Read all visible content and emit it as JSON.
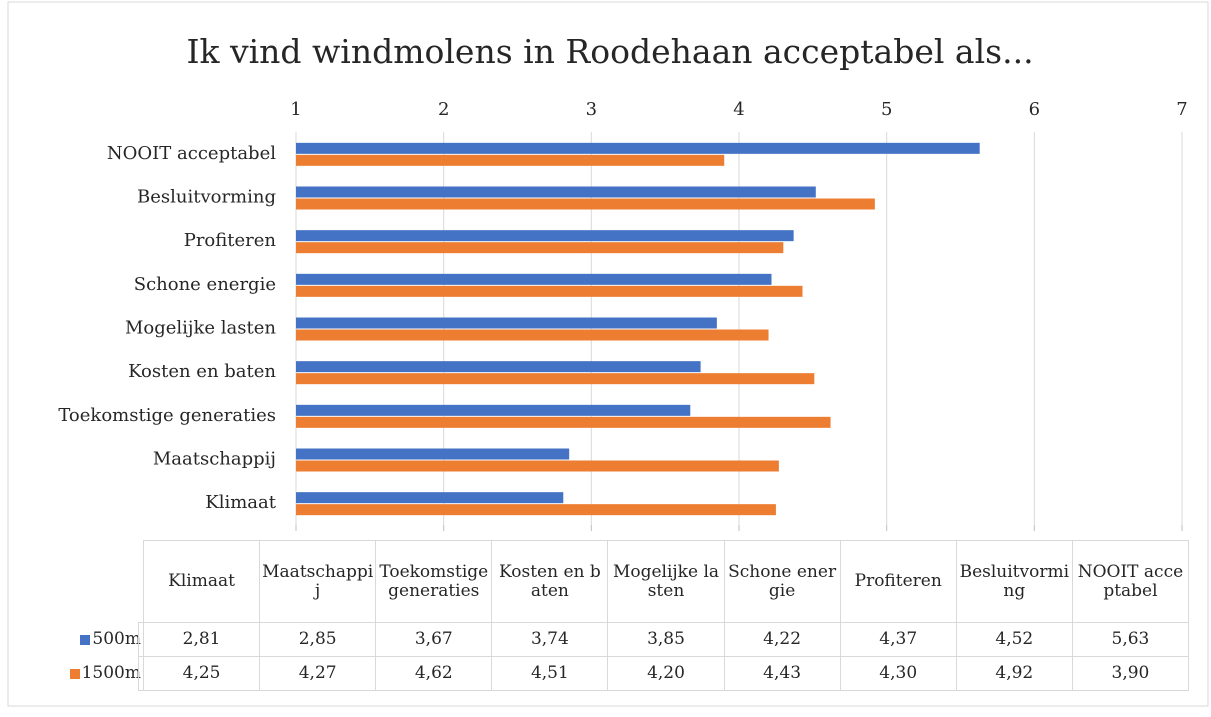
{
  "chart_data": {
    "type": "bar",
    "orientation": "horizontal",
    "title": "Ik vind windmolens in Roodehaan acceptabel als...",
    "categories": [
      "Klimaat",
      "Maatschappij",
      "Toekomstige generaties",
      "Kosten en baten",
      "Mogelijke lasten",
      "Schone energie",
      "Profiteren",
      "Besluitvorming",
      "NOOIT acceptabel"
    ],
    "series": [
      {
        "name": "500m",
        "color": "#4472c4",
        "values": [
          2.81,
          2.85,
          3.67,
          3.74,
          3.85,
          4.22,
          4.37,
          4.52,
          5.63
        ],
        "value_labels": [
          "2,81",
          "2,85",
          "3,67",
          "3,74",
          "3,85",
          "4,22",
          "4,37",
          "4,52",
          "5,63"
        ]
      },
      {
        "name": "1500m",
        "color": "#ed7d31",
        "values": [
          4.25,
          4.27,
          4.62,
          4.51,
          4.2,
          4.43,
          4.3,
          4.92,
          3.9
        ],
        "value_labels": [
          "4,25",
          "4,27",
          "4,62",
          "4,51",
          "4,20",
          "4,43",
          "4,30",
          "4,92",
          "3,90"
        ]
      }
    ],
    "xlim": [
      1,
      7
    ],
    "xticks": [
      1,
      2,
      3,
      4,
      5,
      6,
      7
    ],
    "grid": true,
    "data_table": true
  }
}
